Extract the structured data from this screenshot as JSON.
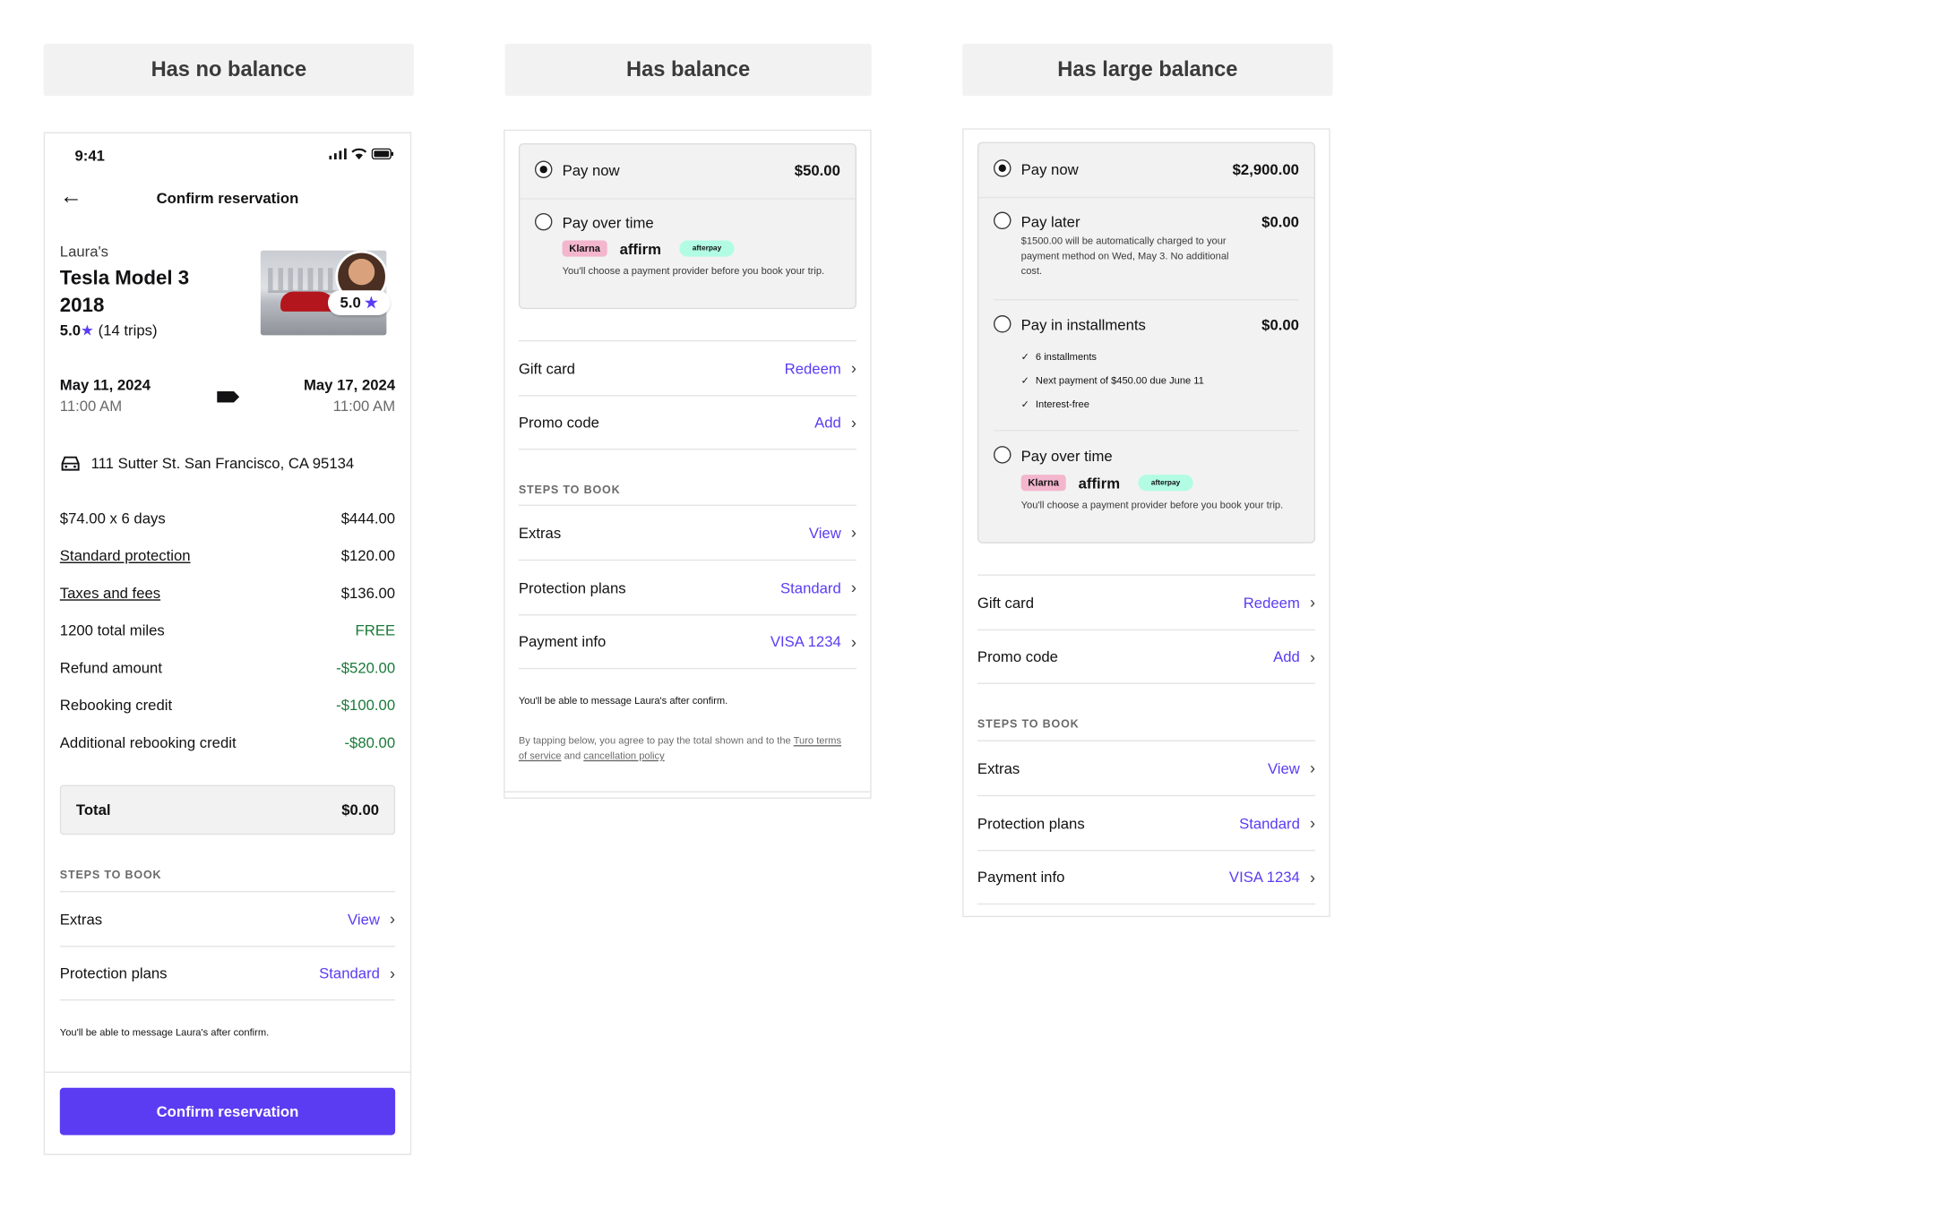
{
  "headers": [
    "Has no balance",
    "Has balance",
    "Has large balance"
  ],
  "phone": {
    "status_time": "9:41",
    "nav_title": "Confirm reservation",
    "owner": "Laura's",
    "car_name": "Tesla Model 3 2018",
    "rating_value": "5.0",
    "rating_trips": "(14 trips)",
    "badge_rating": "5.0",
    "start_date": "May 11, 2024",
    "start_time": "11:00 AM",
    "end_date": "May 17, 2024",
    "end_time": "11:00 AM",
    "address": "111 Sutter St. San Francisco, CA 95134",
    "price_rows": [
      {
        "label": "$74.00 x 6 days",
        "value": "$444.00"
      },
      {
        "label": "Standard protection",
        "value": "$120.00"
      },
      {
        "label": "Taxes and fees",
        "value": "$136.00"
      },
      {
        "label": "1200 total miles",
        "value": "FREE"
      },
      {
        "label": "Refund amount",
        "value": "-$520.00"
      },
      {
        "label": "Rebooking credit",
        "value": "-$100.00"
      },
      {
        "label": "Additional rebooking credit",
        "value": "-$80.00"
      }
    ],
    "total_label": "Total",
    "total_value": "$0.00",
    "steps_label": "STEPS TO BOOK",
    "steps": [
      {
        "label": "Extras",
        "value": "View"
      },
      {
        "label": "Protection plans",
        "value": "Standard"
      }
    ],
    "message_note": "You'll be able to message Laura's after confirm.",
    "confirm_button": "Confirm reservation"
  },
  "balance": {
    "pay_now": "Pay now",
    "pay_now_amount": "$50.00",
    "pay_over_time": "Pay over time",
    "klarna": "Klarna",
    "affirm": "affirm",
    "afterpay": "afterpay",
    "provider_note": "You'll choose a payment provider before you book your trip.",
    "rows": [
      {
        "label": "Gift card",
        "value": "Redeem"
      },
      {
        "label": "Promo code",
        "value": "Add"
      }
    ],
    "steps_label": "STEPS TO BOOK",
    "steps": [
      {
        "label": "Extras",
        "value": "View"
      },
      {
        "label": "Protection plans",
        "value": "Standard"
      },
      {
        "label": "Payment info",
        "value": "VISA 1234"
      }
    ],
    "message_note": "You'll be able to message Laura's after confirm.",
    "terms_prefix": "By tapping below, you agree to pay the total shown and to the",
    "terms_link": "Turo terms of service",
    "terms_and": "and",
    "cancel_link": "cancellation policy"
  },
  "large": {
    "pay_now": "Pay now",
    "pay_now_amount": "$2,900.00",
    "pay_later": "Pay later",
    "pay_later_amount": "$0.00",
    "pay_later_note": "$1500.00 will be automatically charged to your payment method on Wed, May 3. No additional cost.",
    "pay_installments": "Pay in installments",
    "pay_installments_amount": "$0.00",
    "installment_checks": [
      "6 installments",
      "Next payment of $450.00 due June 11",
      "Interest-free"
    ],
    "pay_over_time": "Pay over time",
    "klarna": "Klarna",
    "affirm": "affirm",
    "afterpay": "afterpay",
    "provider_note": "You'll choose a payment provider before you book your trip.",
    "rows": [
      {
        "label": "Gift card",
        "value": "Redeem"
      },
      {
        "label": "Promo code",
        "value": "Add"
      }
    ],
    "steps_label": "STEPS TO BOOK",
    "steps": [
      {
        "label": "Extras",
        "value": "View"
      },
      {
        "label": "Protection plans",
        "value": "Standard"
      },
      {
        "label": "Payment info",
        "value": "VISA 1234"
      }
    ]
  },
  "colors": {
    "accent": "#5b3cf2",
    "credit_green": "#1a7a3a",
    "box_gray": "#f2f2f2"
  }
}
